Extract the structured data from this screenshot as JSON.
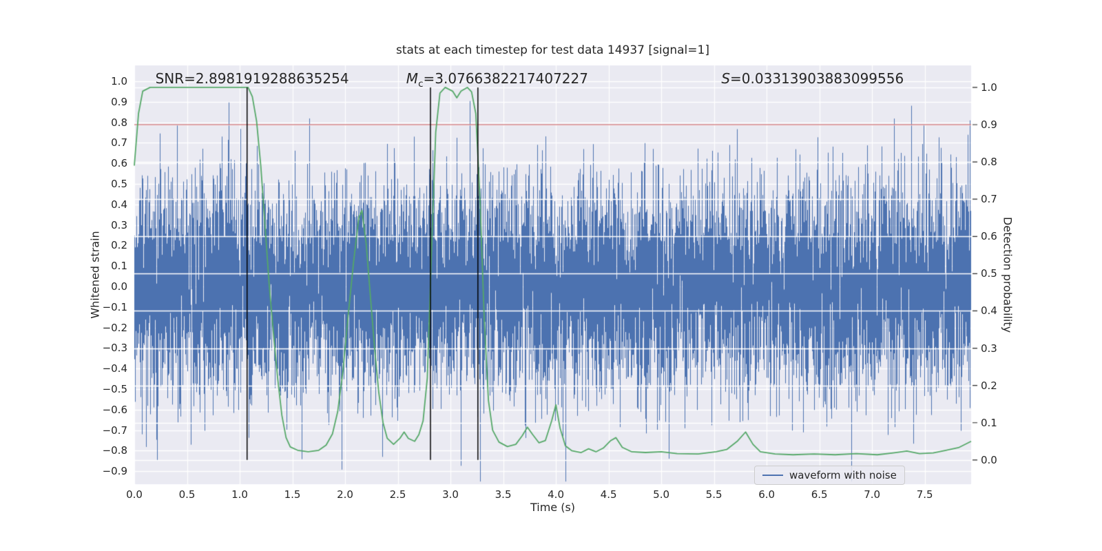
{
  "chart_data": {
    "type": "line",
    "title": "stats at each timestep for test data 14937 [signal=1]",
    "xlabel": "Time (s)",
    "ylabel_left": "Whitened strain",
    "ylabel_right": "Detection probability",
    "xlim": [
      0,
      7.94
    ],
    "ylim_left": [
      -0.963,
      1.077
    ],
    "ylim_right": [
      -0.065,
      1.059
    ],
    "x_ticks": [
      0.0,
      0.5,
      1.0,
      1.5,
      2.0,
      2.5,
      3.0,
      3.5,
      4.0,
      4.5,
      5.0,
      5.5,
      6.0,
      6.5,
      7.0,
      7.5
    ],
    "y_ticks_left": [
      1.0,
      0.9,
      0.8,
      0.7,
      0.6,
      0.5,
      0.4,
      0.3,
      0.2,
      0.1,
      0.0,
      -0.1,
      -0.2,
      -0.3,
      -0.4,
      -0.5,
      -0.6,
      -0.7,
      -0.8,
      -0.9
    ],
    "y_ticks_right": [
      1.0,
      0.9,
      0.8,
      0.7,
      0.6,
      0.5,
      0.4,
      0.3,
      0.2,
      0.1,
      0.0
    ],
    "grid": true,
    "legend_position": "lower right",
    "colors": {
      "axes_background": "#EAEAF2",
      "grid": "#FFFFFF",
      "waveform": "#4C72B0",
      "probability": "#55A868",
      "threshold": "#C44E52",
      "event_lines": "#000000",
      "text": "#262626"
    },
    "stats": {
      "SNR": 2.8981919288635254,
      "Mc": 3.0766382217407227,
      "S": 0.03313903883099556
    },
    "annotations": {
      "snr": {
        "text": "SNR=2.8981919288635254",
        "t": 0.2
      },
      "mc": {
        "var": "M",
        "sub": "c",
        "rest": "=3.0766382217407227",
        "t": 2.58
      },
      "s": {
        "var": "S",
        "rest": "=0.03313903883099556",
        "t": 5.57
      }
    },
    "threshold_probability": 0.9,
    "event_lines_t": [
      1.07,
      2.81,
      3.26
    ],
    "legend": {
      "label": "waveform with noise"
    },
    "series": [
      {
        "name": "waveform with noise",
        "axis": "left",
        "kind": "gaussian_noise",
        "seed": 14937,
        "samples": 8192,
        "std": 0.26,
        "clip": [
          -0.95,
          0.98
        ]
      },
      {
        "name": "detection probability",
        "axis": "right",
        "kind": "line",
        "points": [
          [
            0.0,
            0.79
          ],
          [
            0.04,
            0.93
          ],
          [
            0.08,
            0.99
          ],
          [
            0.15,
            1.0
          ],
          [
            0.4,
            1.0
          ],
          [
            0.7,
            1.0
          ],
          [
            0.95,
            1.0
          ],
          [
            1.08,
            1.0
          ],
          [
            1.12,
            0.975
          ],
          [
            1.16,
            0.91
          ],
          [
            1.2,
            0.79
          ],
          [
            1.24,
            0.63
          ],
          [
            1.28,
            0.47
          ],
          [
            1.32,
            0.34
          ],
          [
            1.36,
            0.22
          ],
          [
            1.4,
            0.12
          ],
          [
            1.44,
            0.06
          ],
          [
            1.48,
            0.035
          ],
          [
            1.55,
            0.026
          ],
          [
            1.65,
            0.022
          ],
          [
            1.75,
            0.026
          ],
          [
            1.82,
            0.04
          ],
          [
            1.88,
            0.07
          ],
          [
            1.93,
            0.13
          ],
          [
            1.98,
            0.24
          ],
          [
            2.03,
            0.39
          ],
          [
            2.08,
            0.53
          ],
          [
            2.13,
            0.65
          ],
          [
            2.16,
            0.67
          ],
          [
            2.2,
            0.58
          ],
          [
            2.24,
            0.44
          ],
          [
            2.28,
            0.3
          ],
          [
            2.32,
            0.18
          ],
          [
            2.36,
            0.1
          ],
          [
            2.4,
            0.058
          ],
          [
            2.46,
            0.042
          ],
          [
            2.52,
            0.058
          ],
          [
            2.56,
            0.075
          ],
          [
            2.6,
            0.058
          ],
          [
            2.66,
            0.05
          ],
          [
            2.7,
            0.068
          ],
          [
            2.74,
            0.105
          ],
          [
            2.78,
            0.22
          ],
          [
            2.82,
            0.56
          ],
          [
            2.86,
            0.88
          ],
          [
            2.9,
            0.985
          ],
          [
            2.95,
            1.0
          ],
          [
            3.02,
            0.99
          ],
          [
            3.06,
            0.972
          ],
          [
            3.1,
            0.99
          ],
          [
            3.16,
            1.0
          ],
          [
            3.2,
            0.988
          ],
          [
            3.24,
            0.93
          ],
          [
            3.28,
            0.7
          ],
          [
            3.32,
            0.38
          ],
          [
            3.36,
            0.16
          ],
          [
            3.4,
            0.08
          ],
          [
            3.46,
            0.048
          ],
          [
            3.54,
            0.036
          ],
          [
            3.62,
            0.042
          ],
          [
            3.68,
            0.065
          ],
          [
            3.73,
            0.088
          ],
          [
            3.78,
            0.068
          ],
          [
            3.84,
            0.046
          ],
          [
            3.9,
            0.052
          ],
          [
            3.96,
            0.105
          ],
          [
            4.0,
            0.148
          ],
          [
            4.04,
            0.085
          ],
          [
            4.09,
            0.038
          ],
          [
            4.15,
            0.025
          ],
          [
            4.24,
            0.02
          ],
          [
            4.31,
            0.03
          ],
          [
            4.38,
            0.022
          ],
          [
            4.45,
            0.032
          ],
          [
            4.52,
            0.052
          ],
          [
            4.57,
            0.06
          ],
          [
            4.63,
            0.034
          ],
          [
            4.72,
            0.022
          ],
          [
            4.85,
            0.02
          ],
          [
            5.0,
            0.022
          ],
          [
            5.15,
            0.017
          ],
          [
            5.35,
            0.016
          ],
          [
            5.52,
            0.022
          ],
          [
            5.62,
            0.028
          ],
          [
            5.72,
            0.05
          ],
          [
            5.8,
            0.075
          ],
          [
            5.87,
            0.042
          ],
          [
            5.94,
            0.022
          ],
          [
            6.08,
            0.016
          ],
          [
            6.25,
            0.014
          ],
          [
            6.45,
            0.016
          ],
          [
            6.65,
            0.014
          ],
          [
            6.85,
            0.017
          ],
          [
            7.05,
            0.014
          ],
          [
            7.2,
            0.019
          ],
          [
            7.33,
            0.024
          ],
          [
            7.45,
            0.017
          ],
          [
            7.58,
            0.019
          ],
          [
            7.7,
            0.026
          ],
          [
            7.82,
            0.033
          ],
          [
            7.94,
            0.05
          ]
        ]
      }
    ]
  }
}
